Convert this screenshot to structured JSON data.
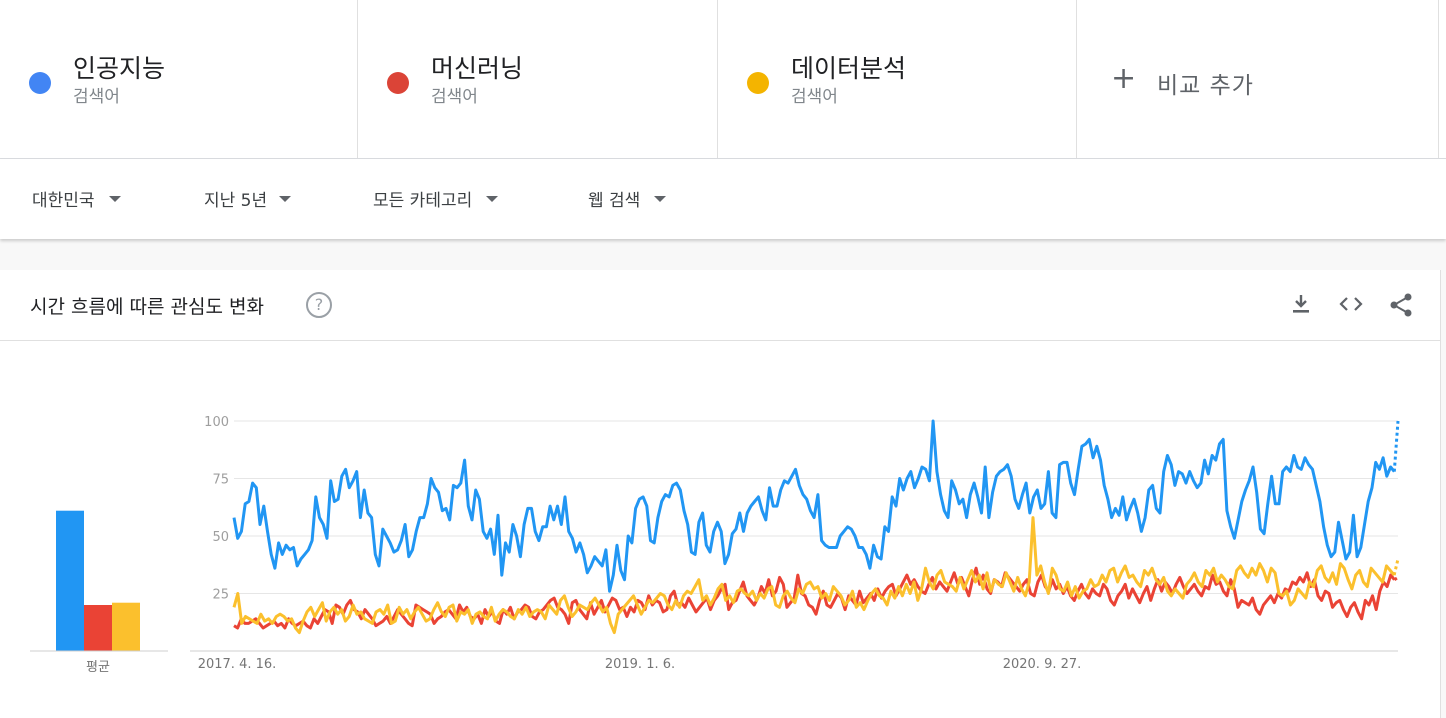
{
  "terms": [
    {
      "name": "인공지능",
      "type": "검색어",
      "color": "#4285f4"
    },
    {
      "name": "머신러닝",
      "type": "검색어",
      "color": "#db4437"
    },
    {
      "name": "데이터분석",
      "type": "검색어",
      "color": "#f4b400"
    }
  ],
  "add_compare": {
    "icon": "plus-icon",
    "label": "비교 추가"
  },
  "filters": {
    "region": "대한민국",
    "period": "지난 5년",
    "category": "모든 카테고리",
    "search_type": "웹 검색"
  },
  "card": {
    "title": "시간 흐름에 따른 관심도 변화",
    "help_icon": "?",
    "icons": [
      "download-icon",
      "embed-code-icon",
      "share-icon"
    ]
  },
  "chart_data": {
    "type": "line",
    "ylim": [
      0,
      100
    ],
    "y_ticks": [
      "100",
      "75",
      "50",
      "25"
    ],
    "x_tick_labels": [
      "2017. 4. 16.",
      "2019. 1. 6.",
      "2020. 9. 27."
    ],
    "average_label": "평균",
    "averages": [
      61,
      20,
      21
    ],
    "series": [
      {
        "name": "인공지능",
        "color": "#2196f3",
        "values": [
          58,
          49,
          52,
          64,
          65,
          73,
          71,
          55,
          63,
          52,
          42,
          36,
          47,
          42,
          46,
          44,
          45,
          37,
          40,
          42,
          44,
          48,
          67,
          58,
          55,
          49,
          74,
          65,
          66,
          76,
          79,
          71,
          74,
          78,
          58,
          70,
          60,
          58,
          42,
          37,
          53,
          50,
          47,
          43,
          44,
          48,
          55,
          41,
          44,
          52,
          58,
          58,
          64,
          75,
          71,
          69,
          61,
          62,
          57,
          72,
          71,
          73,
          83,
          63,
          57,
          70,
          66,
          52,
          49,
          53,
          42,
          59,
          33,
          47,
          43,
          55,
          50,
          41,
          55,
          62,
          62,
          52,
          48,
          54,
          54,
          63,
          57,
          63,
          55,
          67,
          52,
          49,
          43,
          47,
          42,
          34,
          37,
          41,
          39,
          37,
          44,
          26,
          33,
          46,
          35,
          31,
          50,
          47,
          62,
          66,
          67,
          63,
          48,
          47,
          58,
          65,
          68,
          67,
          72,
          73,
          70,
          61,
          55,
          43,
          42,
          56,
          60,
          46,
          43,
          52,
          56,
          52,
          38,
          42,
          51,
          53,
          60,
          52,
          60,
          63,
          65,
          67,
          61,
          57,
          71,
          63,
          63,
          70,
          74,
          73,
          76,
          79,
          72,
          68,
          66,
          61,
          58,
          68,
          48,
          46,
          45,
          45,
          45,
          50,
          52,
          54,
          53,
          50,
          45,
          45,
          42,
          36,
          46,
          41,
          40,
          54,
          52,
          67,
          63,
          75,
          70,
          75,
          78,
          71,
          75,
          80,
          79,
          74,
          100,
          78,
          68,
          61,
          58,
          74,
          70,
          64,
          66,
          58,
          68,
          73,
          67,
          60,
          80,
          58,
          69,
          76,
          78,
          79,
          81,
          76,
          66,
          62,
          68,
          73,
          60,
          67,
          70,
          62,
          64,
          78,
          60,
          58,
          81,
          82,
          82,
          73,
          68,
          79,
          89,
          90,
          92,
          84,
          89,
          83,
          72,
          66,
          58,
          62,
          59,
          67,
          57,
          62,
          66,
          60,
          52,
          58,
          70,
          72,
          62,
          60,
          78,
          85,
          81,
          72,
          78,
          77,
          73,
          78,
          74,
          71,
          73,
          83,
          77,
          85,
          83,
          90,
          92,
          61,
          54,
          49,
          57,
          65,
          70,
          74,
          80,
          69,
          53,
          51,
          64,
          76,
          64,
          64,
          78,
          80,
          78,
          85,
          80,
          79,
          84,
          81,
          79,
          72,
          65,
          54,
          46,
          41,
          43,
          56,
          48,
          40,
          43,
          59,
          41,
          45,
          55,
          65,
          71,
          82,
          79,
          84,
          76,
          80,
          78,
          100
        ]
      },
      {
        "name": "머신러닝",
        "color": "#ea4335",
        "values": [
          11,
          10,
          14,
          12,
          12,
          13,
          14,
          12,
          10,
          11,
          12,
          13,
          11,
          12,
          10,
          14,
          12,
          11,
          12,
          13,
          11,
          10,
          14,
          12,
          15,
          18,
          17,
          12,
          20,
          19,
          16,
          20,
          22,
          18,
          17,
          14,
          18,
          16,
          14,
          11,
          12,
          13,
          15,
          12,
          15,
          18,
          16,
          14,
          12,
          11,
          20,
          19,
          18,
          17,
          16,
          12,
          14,
          15,
          17,
          18,
          16,
          14,
          20,
          17,
          19,
          15,
          14,
          16,
          12,
          18,
          15,
          17,
          13,
          12,
          18,
          16,
          19,
          14,
          17,
          18,
          20,
          19,
          15,
          14,
          17,
          18,
          20,
          22,
          23,
          19,
          18,
          16,
          12,
          21,
          22,
          18,
          16,
          14,
          21,
          16,
          19,
          22,
          17,
          20,
          23,
          22,
          18,
          19,
          15,
          19,
          17,
          22,
          21,
          18,
          24,
          20,
          22,
          21,
          17,
          18,
          24,
          26,
          20,
          21,
          19,
          23,
          20,
          17,
          19,
          21,
          23,
          18,
          22,
          24,
          27,
          29,
          18,
          21,
          22,
          26,
          30,
          24,
          22,
          20,
          23,
          28,
          25,
          31,
          24,
          26,
          32,
          29,
          19,
          21,
          23,
          33,
          25,
          24,
          20,
          19,
          16,
          22,
          26,
          20,
          19,
          22,
          25,
          23,
          18,
          24,
          22,
          20,
          26,
          21,
          23,
          25,
          22,
          27,
          23,
          26,
          28,
          29,
          24,
          27,
          30,
          33,
          29,
          31,
          28,
          26,
          25,
          29,
          32,
          27,
          30,
          28,
          26,
          30,
          34,
          29,
          32,
          28,
          24,
          31,
          36,
          29,
          33,
          27,
          25,
          31,
          30,
          28,
          34,
          32,
          30,
          28,
          26,
          29,
          31,
          25,
          24,
          30,
          33,
          28,
          26,
          31,
          27,
          29,
          25,
          28,
          24,
          22,
          26,
          29,
          25,
          23,
          27,
          25,
          24,
          29,
          27,
          22,
          20,
          24,
          26,
          29,
          23,
          27,
          24,
          21,
          25,
          28,
          22,
          27,
          31,
          26,
          30,
          28,
          25,
          29,
          32,
          28,
          25,
          27,
          29,
          26,
          24,
          28,
          27,
          33,
          29,
          30,
          26,
          24,
          31,
          27,
          19,
          22,
          21,
          20,
          23,
          18,
          16,
          20,
          22,
          24,
          21,
          25,
          23,
          27,
          26,
          30,
          29,
          32,
          30,
          34,
          28,
          31,
          24,
          22,
          26,
          25,
          19,
          21,
          22,
          18,
          15,
          19,
          21,
          17,
          14,
          22,
          20,
          24,
          18,
          26,
          30,
          28,
          33,
          31,
          32
        ]
      },
      {
        "name": "데이터분석",
        "color": "#fbc02d",
        "values": [
          19,
          25,
          12,
          15,
          14,
          13,
          12,
          16,
          13,
          14,
          12,
          15,
          16,
          15,
          13,
          14,
          10,
          8,
          13,
          17,
          19,
          15,
          18,
          21,
          13,
          17,
          19,
          16,
          18,
          13,
          15,
          20,
          16,
          17,
          14,
          13,
          12,
          17,
          18,
          16,
          20,
          12,
          13,
          19,
          16,
          18,
          14,
          17,
          19,
          16,
          13,
          14,
          18,
          21,
          17,
          15,
          19,
          20,
          13,
          17,
          16,
          18,
          12,
          16,
          17,
          15,
          14,
          19,
          13,
          16,
          18,
          17,
          15,
          14,
          18,
          16,
          19,
          15,
          17,
          18,
          17,
          14,
          20,
          18,
          16,
          22,
          24,
          19,
          15,
          17,
          20,
          19,
          18,
          21,
          23,
          20,
          17,
          19,
          12,
          8,
          16,
          18,
          20,
          22,
          24,
          20,
          16,
          19,
          22,
          21,
          23,
          25,
          24,
          20,
          18,
          22,
          19,
          24,
          26,
          25,
          28,
          31,
          22,
          24,
          20,
          23,
          27,
          29,
          22,
          24,
          21,
          26,
          27,
          25,
          24,
          26,
          22,
          25,
          23,
          27,
          28,
          20,
          19,
          24,
          26,
          23,
          21,
          27,
          25,
          29,
          30,
          27,
          28,
          23,
          25,
          22,
          28,
          26,
          24,
          20,
          22,
          26,
          19,
          21,
          18,
          22,
          25,
          27,
          24,
          23,
          20,
          26,
          23,
          28,
          24,
          29,
          25,
          30,
          22,
          27,
          36,
          30,
          27,
          33,
          35,
          30,
          29,
          28,
          26,
          32,
          27,
          31,
          35,
          30,
          33,
          27,
          34,
          26,
          31,
          29,
          28,
          34,
          30,
          26,
          32,
          27,
          24,
          30,
          58,
          33,
          37,
          30,
          25,
          36,
          33,
          27,
          26,
          30,
          24,
          28,
          23,
          26,
          27,
          31,
          28,
          29,
          33,
          30,
          35,
          36,
          30,
          34,
          37,
          32,
          33,
          30,
          28,
          35,
          33,
          36,
          31,
          29,
          32,
          26,
          24,
          27,
          25,
          23,
          29,
          31,
          34,
          30,
          28,
          35,
          33,
          36,
          30,
          33,
          31,
          28,
          27,
          35,
          37,
          34,
          32,
          36,
          33,
          38,
          35,
          30,
          36,
          34,
          25,
          24,
          26,
          20,
          22,
          27,
          25,
          23,
          30,
          28,
          35,
          37,
          32,
          30,
          34,
          29,
          38,
          36,
          31,
          27,
          33,
          35,
          30,
          28,
          36,
          34,
          32,
          30,
          37,
          35,
          33,
          40
        ]
      }
    ]
  }
}
